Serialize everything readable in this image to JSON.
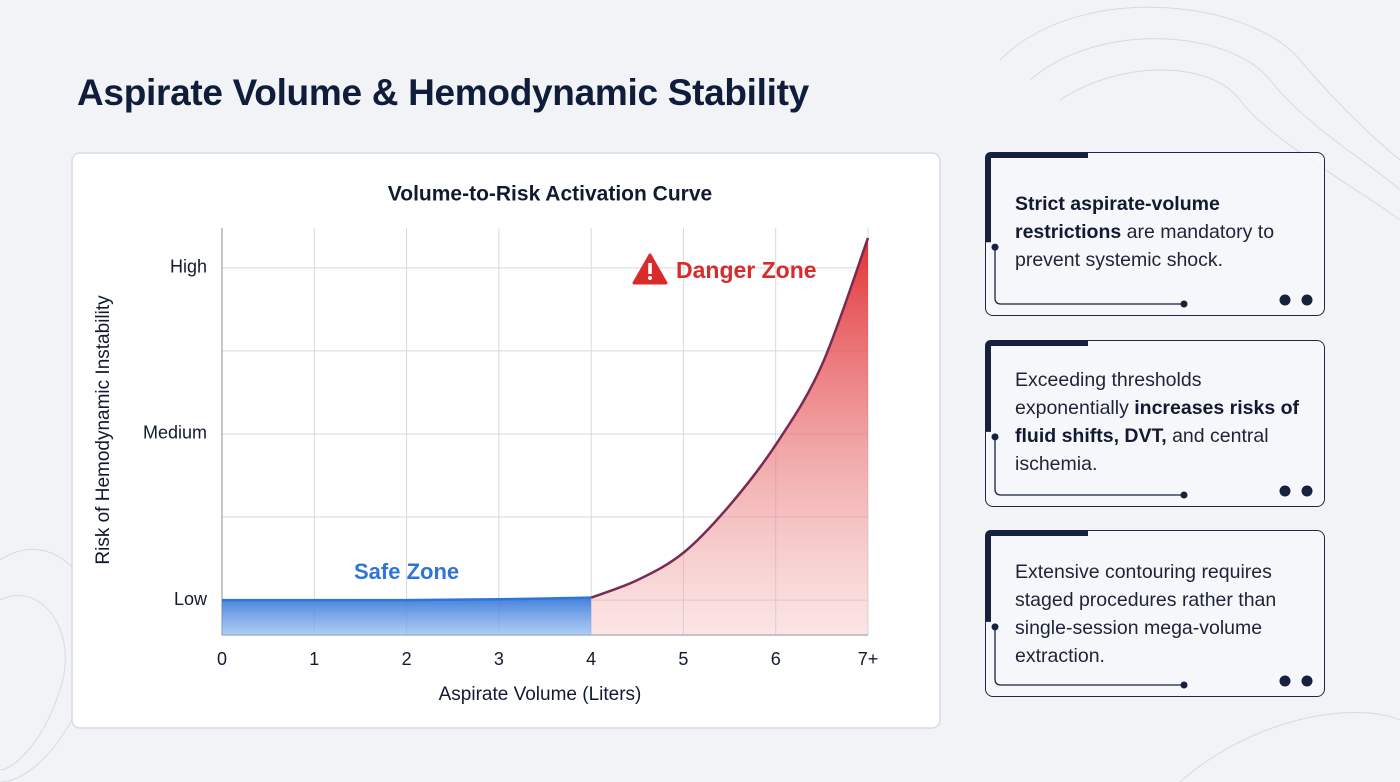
{
  "title": "Aspirate Volume & Hemodynamic Stability",
  "chart_data": {
    "type": "area",
    "title": "Volume-to-Risk Activation Curve",
    "x_label": "Aspirate Volume (Liters)",
    "y_label": "Risk of Hemodynamic Instability",
    "series": [
      {
        "name": "Safe Zone",
        "color": "#2f74d8",
        "x": [
          0,
          1,
          2,
          3,
          4
        ],
        "values": [
          0,
          0,
          0,
          0.01,
          0.03
        ]
      },
      {
        "name": "Danger Zone",
        "color": "#d92b2b",
        "x": [
          4,
          4.5,
          5,
          5.5,
          6,
          6.5,
          7
        ],
        "values": [
          0.03,
          0.24,
          0.57,
          1.14,
          1.87,
          2.83,
          4.36
        ]
      }
    ],
    "xlim": [
      0,
      7
    ],
    "xticks": [
      0,
      1,
      2,
      3,
      4,
      5,
      6,
      {
        "value": 7,
        "label": "7+"
      }
    ],
    "ylim": [
      -0.42,
      4.48
    ],
    "yticks": [
      {
        "value": 0,
        "label": "Low"
      },
      {
        "value": 1,
        "label": null
      },
      {
        "value": 2,
        "label": "Medium"
      },
      {
        "value": 3,
        "label": null
      },
      {
        "value": 4,
        "label": "High"
      }
    ],
    "grid": true
  },
  "cards": [
    {
      "segments": [
        {
          "text": "Strict aspirate-volume restrictions",
          "bold": true
        },
        {
          "text": " are mandatory to prevent systemic shock.",
          "bold": false
        }
      ]
    },
    {
      "segments": [
        {
          "text": "Exceeding thresholds exponentially ",
          "bold": false
        },
        {
          "text": "increases risks of fluid shifts, DVT,",
          "bold": true
        },
        {
          "text": " and central ischemia.",
          "bold": false
        }
      ]
    },
    {
      "segments": [
        {
          "text": "Extensive contouring requires staged procedures rather than single-session mega-volume extraction.",
          "bold": false
        }
      ]
    }
  ]
}
